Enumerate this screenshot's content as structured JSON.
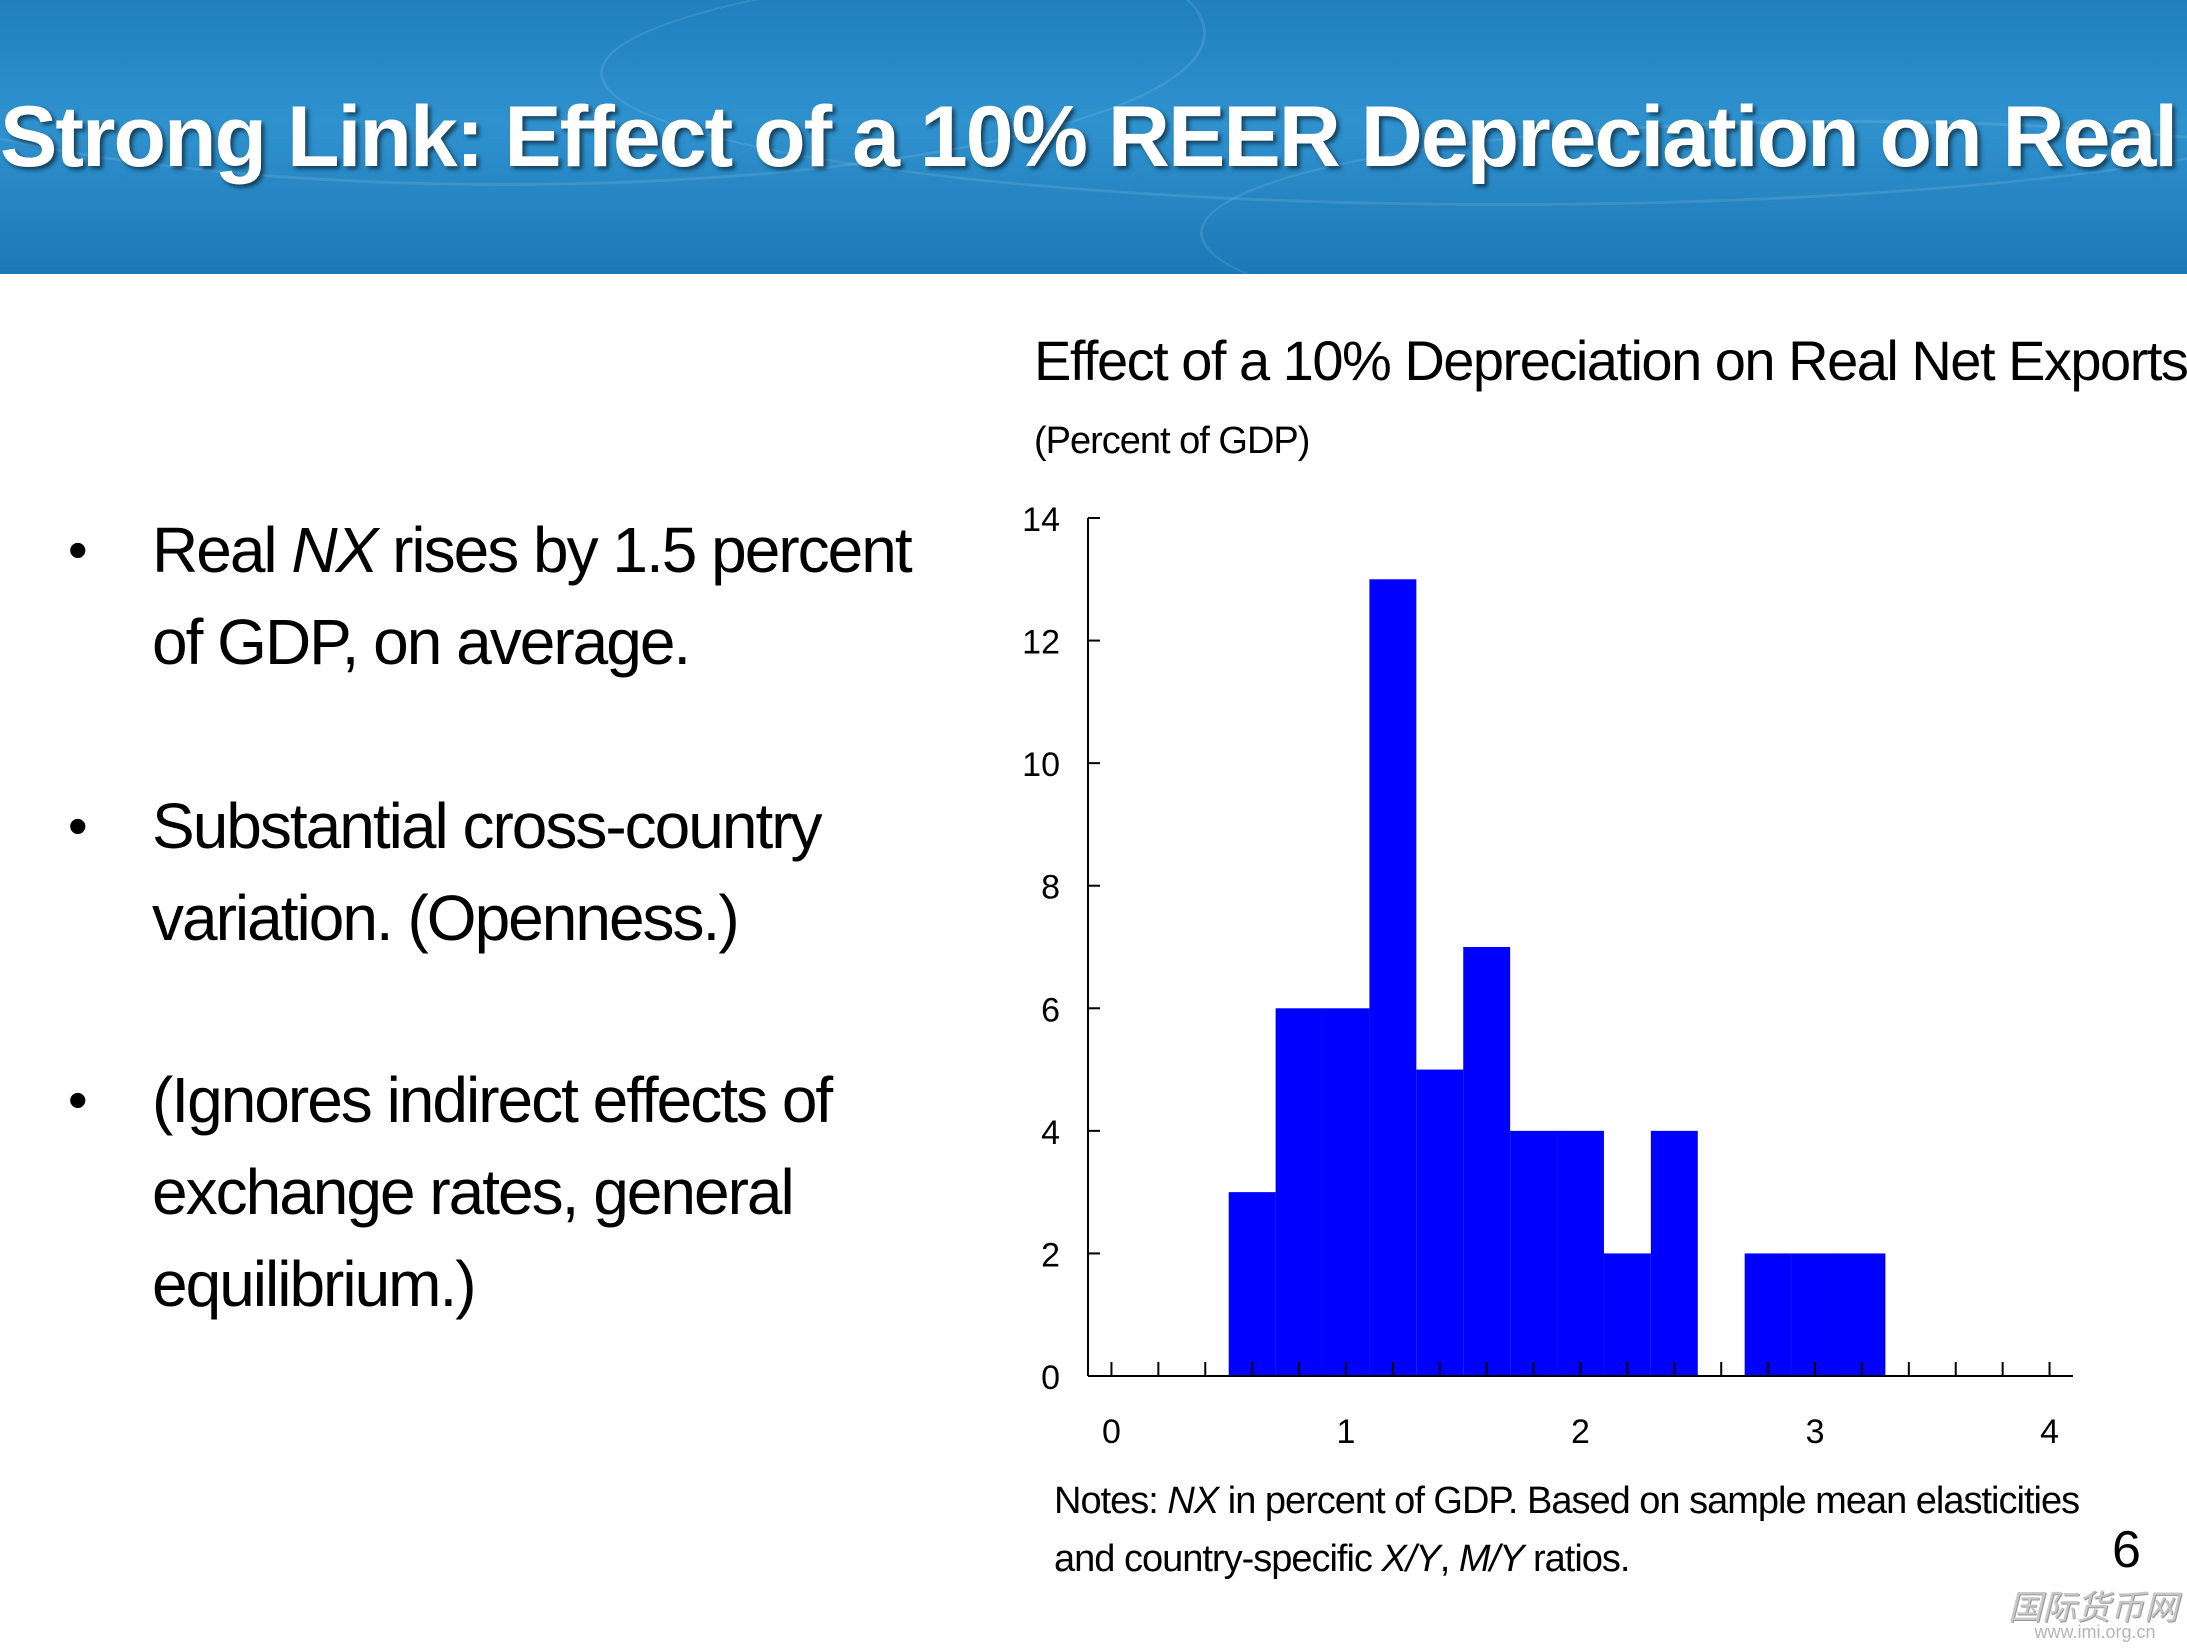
{
  "slide": {
    "title": "Strong Link:  Effect of a 10% REER Depreciation on Real ",
    "title_italic": "NX",
    "page_number": "6"
  },
  "bullets": [
    {
      "pre": "Real ",
      "italic": "NX",
      "post": " rises by 1.5 percent of GDP, on average."
    },
    {
      "pre": "Substantial cross-country variation.  (Openness.)",
      "italic": "",
      "post": ""
    },
    {
      "pre": "(Ignores indirect effects of exchange rates, general equilibrium.)",
      "italic": "",
      "post": ""
    }
  ],
  "bullet_symbol": "•",
  "notes": {
    "line1_pre": "Notes: ",
    "line1_italic": "NX",
    "line1_post": " in percent of GDP. Based on sample mean elasticities",
    "line2_pre": "and country-specific ",
    "line2_italic1": "X/Y",
    "line2_mid": ", ",
    "line2_italic2": "M/Y",
    "line2_post": " ratios."
  },
  "watermark": {
    "text": "国际货币网",
    "url": "www.imi.org.cn"
  },
  "colors": {
    "bar": "#0000ff",
    "banner": "#2a8ccb",
    "axis": "#000000"
  },
  "chart_data": {
    "type": "bar",
    "title": "Effect of a 10% Depreciation on Real Net Exports",
    "subtitle": "(Percent of GDP)",
    "xlabel": "",
    "ylabel": "",
    "xlim": [
      -0.1,
      4.1
    ],
    "ylim": [
      0,
      14
    ],
    "x_ticks": [
      0,
      1,
      2,
      3,
      4
    ],
    "y_ticks": [
      0,
      2,
      4,
      6,
      8,
      10,
      12,
      14
    ],
    "bin_width": 0.2,
    "bins": [
      {
        "x0": 0.5,
        "value": 3
      },
      {
        "x0": 0.7,
        "value": 6
      },
      {
        "x0": 0.9,
        "value": 6
      },
      {
        "x0": 1.1,
        "value": 13
      },
      {
        "x0": 1.3,
        "value": 5
      },
      {
        "x0": 1.5,
        "value": 7
      },
      {
        "x0": 1.7,
        "value": 4
      },
      {
        "x0": 1.9,
        "value": 4
      },
      {
        "x0": 2.1,
        "value": 2
      },
      {
        "x0": 2.3,
        "value": 4
      },
      {
        "x0": 2.5,
        "value": 0
      },
      {
        "x0": 2.7,
        "value": 2
      },
      {
        "x0": 2.9,
        "value": 2
      },
      {
        "x0": 3.1,
        "value": 2
      }
    ],
    "grid": false
  }
}
